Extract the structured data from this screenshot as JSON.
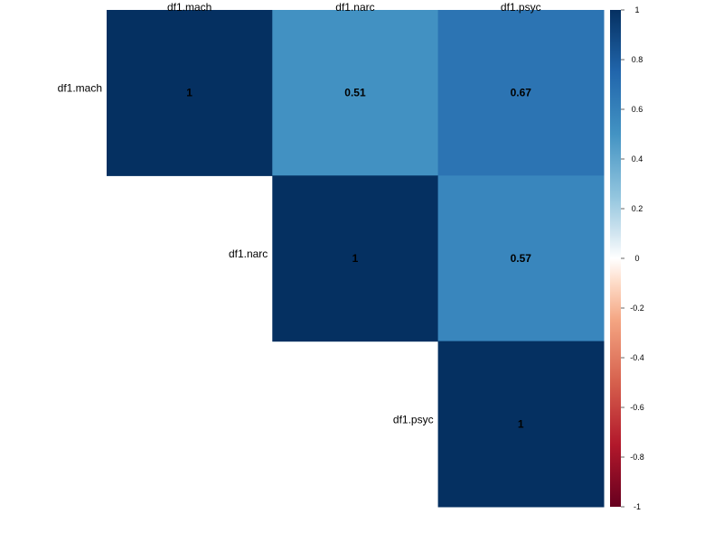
{
  "chart_data": {
    "type": "heatmap",
    "variables": [
      "df1.mach",
      "df1.narc",
      "df1.psyc"
    ],
    "matrix": [
      [
        1,
        0.51,
        0.67
      ],
      [
        null,
        1,
        0.57
      ],
      [
        null,
        null,
        1
      ]
    ],
    "cell_labels": [
      [
        "1",
        "0.51",
        "0.67"
      ],
      [
        null,
        "1",
        "0.57"
      ],
      [
        null,
        null,
        "1"
      ]
    ],
    "layout": "upper-triangle",
    "color_scale": {
      "min": -1,
      "max": 1,
      "ticks": [
        1,
        0.8,
        0.6,
        0.4,
        0.2,
        0,
        -0.2,
        -0.4,
        -0.6,
        -0.8,
        -1
      ],
      "tick_labels": [
        "1",
        "0.8",
        "0.6",
        "0.4",
        "0.2",
        "0",
        "-0.2",
        "-0.4",
        "-0.6",
        "-0.8",
        "-1"
      ],
      "stops": [
        {
          "value": -1,
          "color": "#67001f"
        },
        {
          "value": -0.75,
          "color": "#b2182b"
        },
        {
          "value": -0.5,
          "color": "#d6604d"
        },
        {
          "value": -0.25,
          "color": "#f4a582"
        },
        {
          "value": -0.1,
          "color": "#fddbc7"
        },
        {
          "value": 0,
          "color": "#ffffff"
        },
        {
          "value": 0.1,
          "color": "#d1e5f0"
        },
        {
          "value": 0.25,
          "color": "#92c5de"
        },
        {
          "value": 0.5,
          "color": "#4393c3"
        },
        {
          "value": 0.75,
          "color": "#2166ac"
        },
        {
          "value": 1,
          "color": "#053061"
        }
      ]
    },
    "legend_placement": "right",
    "grid": false,
    "title": "",
    "xlabel": "",
    "ylabel": ""
  }
}
